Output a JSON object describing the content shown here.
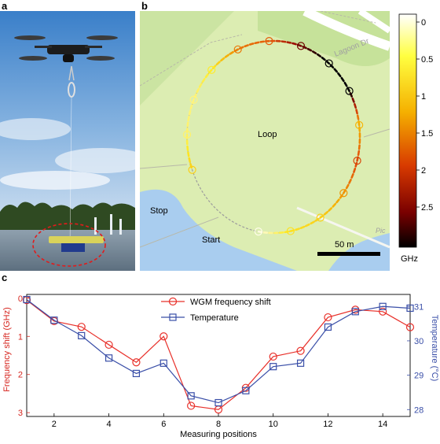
{
  "panels": {
    "a": "a",
    "b": "b",
    "c": "c"
  },
  "map": {
    "labels": {
      "loop": "Loop",
      "stop": "Stop",
      "start": "Start",
      "road": "Lagoon Dr",
      "road_partial": "Pic"
    },
    "scale_bar": "50 m",
    "colors": {
      "grass": "#dcedb2",
      "water": "#a9cdef",
      "road": "#ffffff"
    }
  },
  "colorbar": {
    "ticks": [
      "0",
      "0.5",
      "1",
      "1.5",
      "2",
      "2.5"
    ],
    "unit": "GHz",
    "colors": [
      "#ffffff",
      "#ffff00",
      "#f2a900",
      "#d83a00",
      "#8a0000",
      "#000000"
    ]
  },
  "chart_data": {
    "type": "line",
    "x": [
      1,
      2,
      3,
      4,
      5,
      6,
      7,
      8,
      9,
      10,
      11,
      12,
      13,
      14,
      15
    ],
    "xlabel": "Measuring positions",
    "xticks": [
      "2",
      "4",
      "6",
      "8",
      "10",
      "12",
      "14"
    ],
    "xlim": [
      1,
      15
    ],
    "ylabel_left": "Frequency shift (GHz)",
    "ylabel_right": "Temperature (°C)",
    "ylim_left": [
      3.1,
      -0.1
    ],
    "ylim_right": [
      27.8,
      31.35
    ],
    "yticks_left": [
      "0",
      "1",
      "2",
      "3"
    ],
    "yticks_right": [
      "28",
      "29",
      "30",
      "31"
    ],
    "legend_position": "top-center",
    "series": [
      {
        "name": "WGM frequency shift",
        "axis": "left",
        "color": "#e8302a",
        "marker": "circle",
        "values": [
          0.05,
          0.6,
          0.75,
          1.22,
          1.68,
          1.0,
          2.82,
          2.92,
          2.35,
          1.53,
          1.38,
          0.5,
          0.3,
          0.35,
          0.76
        ]
      },
      {
        "name": "Temperature",
        "axis": "right",
        "color": "#3a4fa8",
        "marker": "square",
        "values": [
          31.2,
          30.6,
          30.15,
          29.5,
          29.05,
          29.35,
          28.4,
          28.2,
          28.55,
          29.25,
          29.35,
          30.4,
          30.85,
          31.0,
          30.95
        ]
      }
    ]
  }
}
